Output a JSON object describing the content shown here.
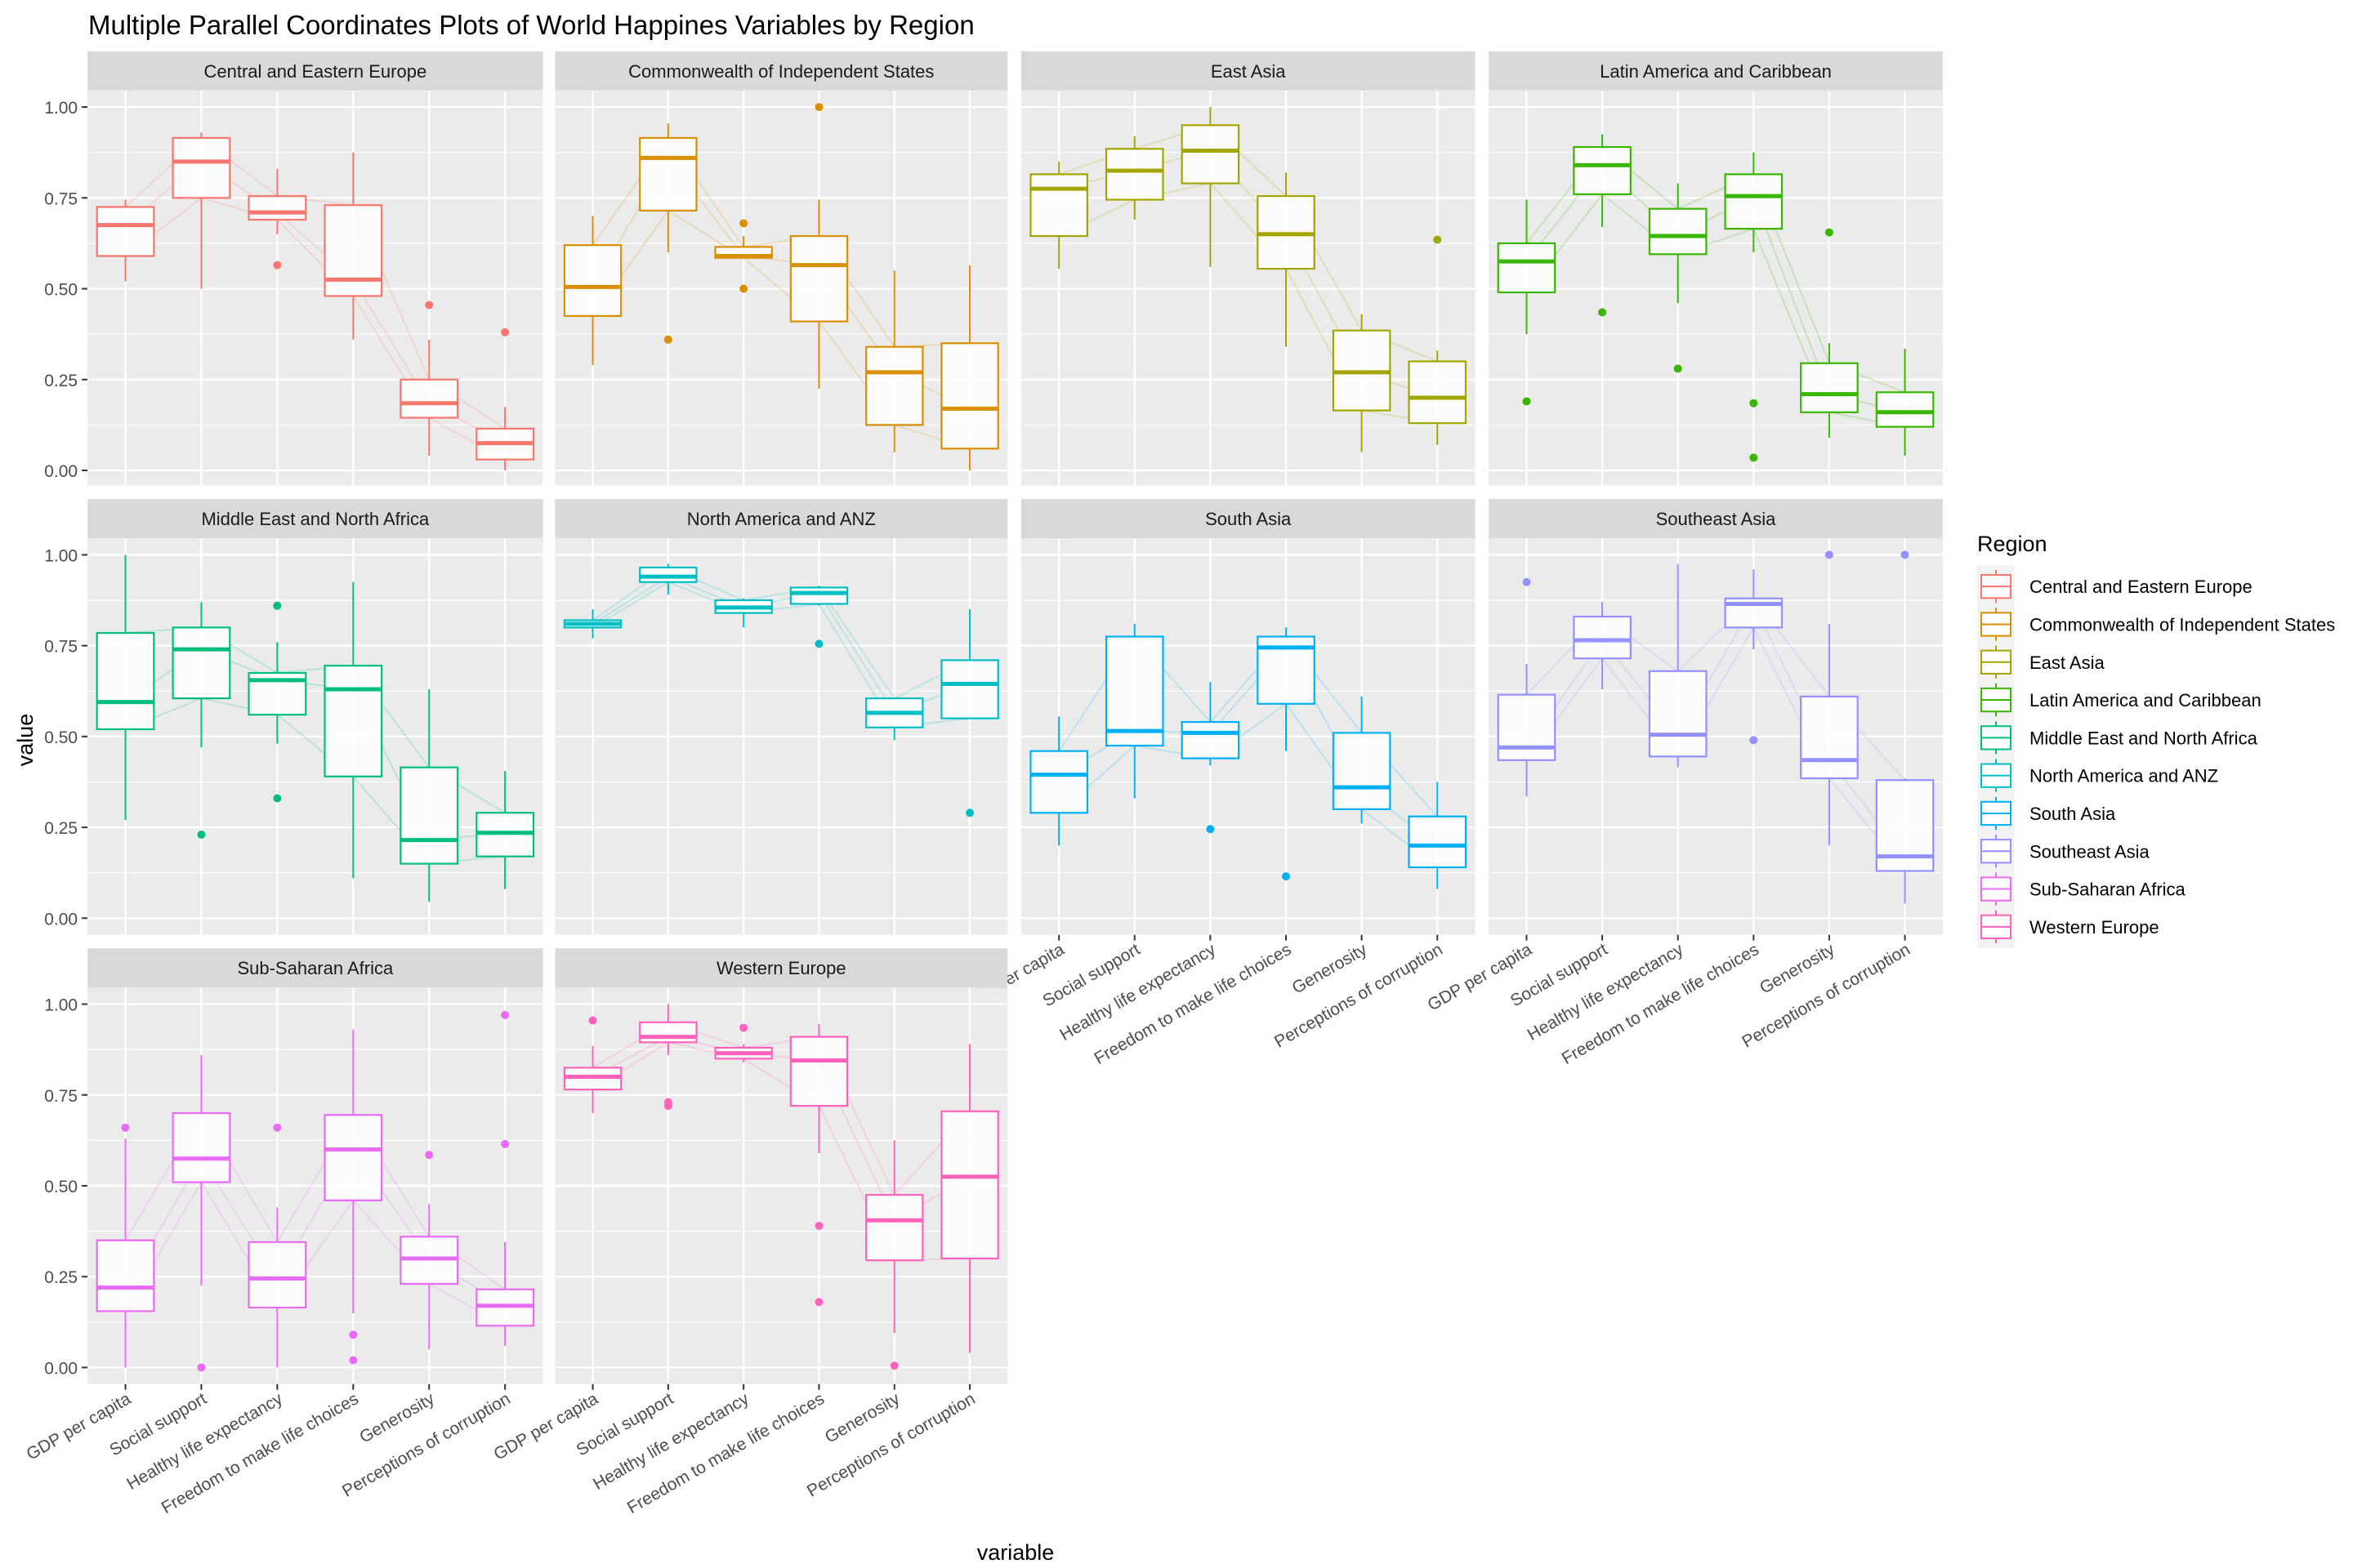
{
  "chart_data": {
    "type": "boxplot-parallel-coordinates",
    "title": "Multiple Parallel Coordinates Plots of World Happines Variables by Region",
    "xlabel": "variable",
    "ylabel": "value",
    "ylim": [
      0,
      1
    ],
    "y_ticks": [
      "0.00",
      "0.25",
      "0.50",
      "0.75",
      "1.00"
    ],
    "grid": true,
    "legend_title": "Region",
    "legend_position": "right",
    "categories": [
      "GDP per capita",
      "Social support",
      "Healthy life expectancy",
      "Freedom to make life choices",
      "Generosity",
      "Perceptions of corruption"
    ],
    "panels": [
      {
        "region": "Central and Eastern Europe",
        "color": "#F8766D",
        "boxes": [
          [
            0.52,
            0.59,
            0.675,
            0.725,
            0.745
          ],
          [
            0.5,
            0.75,
            0.85,
            0.915,
            0.93
          ],
          [
            0.65,
            0.69,
            0.71,
            0.755,
            0.83
          ],
          [
            0.36,
            0.48,
            0.525,
            0.73,
            0.875
          ],
          [
            0.04,
            0.145,
            0.185,
            0.25,
            0.36
          ],
          [
            0.0,
            0.03,
            0.075,
            0.115,
            0.175
          ]
        ],
        "outliers": [
          [
            2,
            0.565
          ],
          [
            4,
            0.455
          ],
          [
            5,
            0.38
          ]
        ]
      },
      {
        "region": "Commonwealth of Independent States",
        "color": "#D89000",
        "boxes": [
          [
            0.29,
            0.425,
            0.505,
            0.62,
            0.7
          ],
          [
            0.6,
            0.715,
            0.86,
            0.915,
            0.955
          ],
          [
            0.59,
            0.585,
            0.59,
            0.615,
            0.645
          ],
          [
            0.225,
            0.41,
            0.565,
            0.645,
            0.745
          ],
          [
            0.05,
            0.125,
            0.27,
            0.34,
            0.55
          ],
          [
            0.0,
            0.06,
            0.17,
            0.35,
            0.565
          ]
        ],
        "outliers": [
          [
            1,
            0.36
          ],
          [
            2,
            0.68
          ],
          [
            2,
            0.5
          ],
          [
            3,
            1.0
          ]
        ]
      },
      {
        "region": "East Asia",
        "color": "#A3A500",
        "boxes": [
          [
            0.555,
            0.645,
            0.775,
            0.815,
            0.85
          ],
          [
            0.69,
            0.745,
            0.825,
            0.885,
            0.92
          ],
          [
            0.56,
            0.79,
            0.88,
            0.95,
            1.0
          ],
          [
            0.34,
            0.555,
            0.65,
            0.755,
            0.82
          ],
          [
            0.05,
            0.165,
            0.27,
            0.385,
            0.43
          ],
          [
            0.07,
            0.13,
            0.2,
            0.3,
            0.33
          ]
        ],
        "outliers": [
          [
            5,
            0.635
          ]
        ]
      },
      {
        "region": "Latin America and Caribbean",
        "color": "#39B600",
        "boxes": [
          [
            0.375,
            0.49,
            0.575,
            0.625,
            0.745
          ],
          [
            0.67,
            0.76,
            0.84,
            0.89,
            0.925
          ],
          [
            0.46,
            0.595,
            0.645,
            0.72,
            0.79
          ],
          [
            0.6,
            0.665,
            0.755,
            0.815,
            0.875
          ],
          [
            0.09,
            0.16,
            0.21,
            0.295,
            0.35
          ],
          [
            0.04,
            0.12,
            0.16,
            0.215,
            0.335
          ]
        ],
        "outliers": [
          [
            0,
            0.19
          ],
          [
            1,
            0.435
          ],
          [
            2,
            0.28
          ],
          [
            3,
            0.185
          ],
          [
            3,
            0.035
          ],
          [
            4,
            0.655
          ]
        ]
      },
      {
        "region": "Middle East and North Africa",
        "color": "#00BF7D",
        "boxes": [
          [
            0.27,
            0.52,
            0.595,
            0.785,
            1.0
          ],
          [
            0.47,
            0.605,
            0.74,
            0.8,
            0.87
          ],
          [
            0.48,
            0.56,
            0.655,
            0.675,
            0.76
          ],
          [
            0.11,
            0.39,
            0.63,
            0.695,
            0.925
          ],
          [
            0.045,
            0.15,
            0.215,
            0.415,
            0.63
          ],
          [
            0.08,
            0.17,
            0.235,
            0.29,
            0.405
          ]
        ],
        "outliers": [
          [
            1,
            0.23
          ],
          [
            2,
            0.86
          ],
          [
            2,
            0.33
          ]
        ]
      },
      {
        "region": "North America and ANZ",
        "color": "#00BFC4",
        "boxes": [
          [
            0.77,
            0.8,
            0.81,
            0.82,
            0.85
          ],
          [
            0.89,
            0.925,
            0.94,
            0.965,
            0.975
          ],
          [
            0.8,
            0.84,
            0.855,
            0.875,
            0.88
          ],
          [
            0.86,
            0.865,
            0.895,
            0.91,
            0.915
          ],
          [
            0.49,
            0.525,
            0.565,
            0.605,
            0.605
          ],
          [
            0.55,
            0.55,
            0.645,
            0.71,
            0.85
          ]
        ],
        "outliers": [
          [
            3,
            0.755
          ],
          [
            5,
            0.29
          ]
        ]
      },
      {
        "region": "South Asia",
        "color": "#00B0F6",
        "boxes": [
          [
            0.2,
            0.29,
            0.395,
            0.46,
            0.555
          ],
          [
            0.33,
            0.475,
            0.515,
            0.775,
            0.81
          ],
          [
            0.42,
            0.44,
            0.51,
            0.54,
            0.65
          ],
          [
            0.46,
            0.59,
            0.745,
            0.775,
            0.8
          ],
          [
            0.26,
            0.3,
            0.36,
            0.51,
            0.61
          ],
          [
            0.08,
            0.14,
            0.2,
            0.28,
            0.375
          ]
        ],
        "outliers": [
          [
            2,
            0.245
          ],
          [
            3,
            0.115
          ]
        ]
      },
      {
        "region": "Southeast Asia",
        "color": "#9590FF",
        "boxes": [
          [
            0.335,
            0.435,
            0.47,
            0.615,
            0.7
          ],
          [
            0.63,
            0.715,
            0.765,
            0.83,
            0.87
          ],
          [
            0.415,
            0.445,
            0.505,
            0.68,
            0.975
          ],
          [
            0.74,
            0.8,
            0.865,
            0.88,
            0.96
          ],
          [
            0.2,
            0.385,
            0.435,
            0.61,
            0.81
          ],
          [
            0.04,
            0.13,
            0.17,
            0.38,
            0.385
          ]
        ],
        "outliers": [
          [
            0,
            0.925
          ],
          [
            3,
            0.49
          ],
          [
            4,
            1.0
          ],
          [
            5,
            1.0
          ]
        ]
      },
      {
        "region": "Sub-Saharan Africa",
        "color": "#E76BF3",
        "boxes": [
          [
            0.0,
            0.155,
            0.22,
            0.35,
            0.63
          ],
          [
            0.225,
            0.51,
            0.575,
            0.7,
            0.86
          ],
          [
            0.0,
            0.165,
            0.245,
            0.345,
            0.44
          ],
          [
            0.15,
            0.46,
            0.6,
            0.695,
            0.93
          ],
          [
            0.05,
            0.23,
            0.3,
            0.36,
            0.45
          ],
          [
            0.06,
            0.115,
            0.17,
            0.215,
            0.345
          ]
        ],
        "outliers": [
          [
            0,
            0.66
          ],
          [
            1,
            0.0
          ],
          [
            2,
            0.66
          ],
          [
            3,
            0.09
          ],
          [
            3,
            0.02
          ],
          [
            4,
            0.585
          ],
          [
            5,
            0.97
          ],
          [
            5,
            0.615
          ]
        ]
      },
      {
        "region": "Western Europe",
        "color": "#FF62BC",
        "boxes": [
          [
            0.7,
            0.765,
            0.8,
            0.825,
            0.885
          ],
          [
            0.86,
            0.895,
            0.91,
            0.95,
            1.0
          ],
          [
            0.84,
            0.85,
            0.865,
            0.88,
            0.89
          ],
          [
            0.59,
            0.72,
            0.845,
            0.91,
            0.945
          ],
          [
            0.095,
            0.295,
            0.405,
            0.475,
            0.625
          ],
          [
            0.04,
            0.3,
            0.525,
            0.705,
            0.89
          ]
        ],
        "outliers": [
          [
            0,
            0.955
          ],
          [
            1,
            0.73
          ],
          [
            1,
            0.72
          ],
          [
            2,
            0.935
          ],
          [
            3,
            0.39
          ],
          [
            3,
            0.18
          ],
          [
            4,
            0.005
          ]
        ]
      }
    ]
  }
}
